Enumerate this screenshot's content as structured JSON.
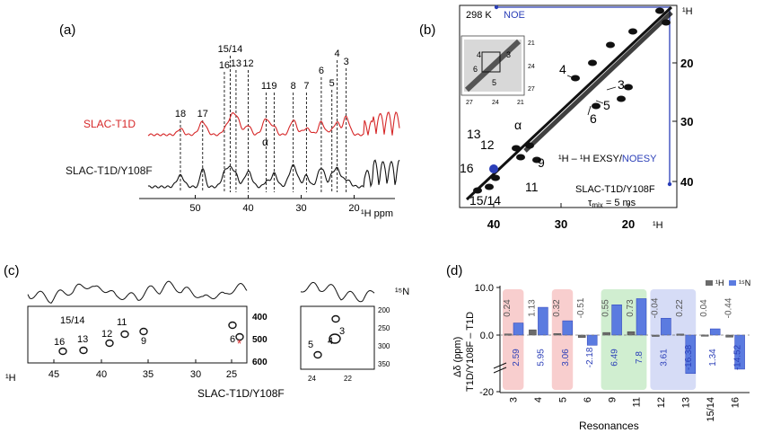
{
  "panels": {
    "a": {
      "label": "(a)",
      "series": [
        {
          "name": "SLAC-T1D",
          "color": "#d62728"
        },
        {
          "name": "SLAC-T1D/Y108F",
          "color": "#111111"
        }
      ],
      "axis_ticks": [
        "50",
        "40",
        "30",
        "20"
      ],
      "axis_label": "¹H ppm",
      "peaks": [
        {
          "label": "18",
          "ppm": 52.8
        },
        {
          "label": "17",
          "ppm": 48.6
        },
        {
          "label": "16",
          "ppm": 44.5
        },
        {
          "label": "15/14",
          "ppm": 43.4
        },
        {
          "label": "13",
          "ppm": 42.3
        },
        {
          "label": "12",
          "ppm": 40.0
        },
        {
          "label": "11",
          "ppm": 36.6
        },
        {
          "label": "9",
          "ppm": 35.1
        },
        {
          "label": "8",
          "ppm": 31.5
        },
        {
          "label": "7",
          "ppm": 29.0
        },
        {
          "label": "6",
          "ppm": 26.2
        },
        {
          "label": "5",
          "ppm": 24.2
        },
        {
          "label": "4",
          "ppm": 23.2
        },
        {
          "label": "3",
          "ppm": 21.5
        }
      ],
      "alpha_label": "α"
    },
    "b": {
      "label": "(b)",
      "temperature": "298 K",
      "noe_label": "NOE",
      "axis_unit": "¹H",
      "ticks": [
        "40",
        "30",
        "20"
      ],
      "right_ticks": [
        "20",
        "30",
        "40"
      ],
      "inset_ticks_x": [
        "27",
        "24",
        "21"
      ],
      "inset_ticks_y": [
        "21",
        "24",
        "27"
      ],
      "inset_labels": [
        "4",
        "3",
        "6",
        "5"
      ],
      "cross_peaks": [
        "4",
        "3",
        "5",
        "6",
        "α",
        "13",
        "12",
        "9",
        "16",
        "11",
        "15/14"
      ],
      "exp_label_part1": "¹H – ¹H EXSY/",
      "exp_label_part2": "NOESY",
      "sample": "SLAC-T1D/Y108F",
      "tau_label": "τ",
      "tau_sub": "mix",
      "tau_value": " = 5 ms"
    },
    "c": {
      "label": "(c)",
      "n_label": "¹⁵N",
      "h_label": "¹H",
      "x_ticks": [
        "45",
        "40",
        "35",
        "30",
        "25"
      ],
      "y_ticks_left": [
        "400",
        "500",
        "600"
      ],
      "y_ticks_right": [
        "200",
        "250",
        "300",
        "350"
      ],
      "inset_x_ticks": [
        "24",
        "22"
      ],
      "peaks_left": [
        "15/14",
        "16",
        "13",
        "12",
        "11",
        "9",
        "6"
      ],
      "peaks_right": [
        "3",
        "5",
        "4"
      ],
      "asterisk": "*",
      "sample": "SLAC-T1D/Y108F"
    },
    "d": {
      "label": "(d)"
    }
  },
  "chart_data": {
    "type": "bar",
    "title": "",
    "xlabel": "Resonances",
    "ylabel": "Δδ (ppm)",
    "ylabel2": "T1D/Y108F – T1D",
    "y_ticks": [
      "10.0",
      "0.0",
      "-20"
    ],
    "categories": [
      "3",
      "4",
      "5",
      "6",
      "9",
      "11",
      "12",
      "13",
      "15/14",
      "16"
    ],
    "series": [
      {
        "name": "¹H",
        "color": "#6b6b6b",
        "values": [
          0.24,
          1.13,
          0.32,
          -0.51,
          0.55,
          0.73,
          -0.04,
          0.22,
          0.04,
          -0.44
        ],
        "labels": [
          "0.24",
          "1.13",
          "0.32",
          "-0.51",
          "0.55",
          "0.73",
          "-0.04",
          "0.22",
          "0.04",
          "-0.44"
        ]
      },
      {
        "name": "¹⁵N",
        "color": "#5b7be0",
        "values": [
          2.59,
          5.95,
          3.06,
          -2.18,
          6.49,
          7.8,
          3.61,
          -16.38,
          1.34,
          -14.52
        ],
        "labels": [
          "2.59",
          "5.95",
          "3.06",
          "-2.18",
          "6.49",
          "7.8",
          "3.61",
          "-16.38",
          "1.34",
          "-14.52"
        ]
      }
    ],
    "highlight_groups": [
      {
        "categories": [
          "3"
        ],
        "color": "#f7c6c6"
      },
      {
        "categories": [
          "5"
        ],
        "color": "#f7c6c6"
      },
      {
        "categories": [
          "9",
          "11"
        ],
        "color": "#c8ebc8"
      },
      {
        "categories": [
          "12",
          "13"
        ],
        "color": "#cfd6f5"
      }
    ],
    "ylim": [
      -20,
      10
    ],
    "legend_position": "top-right"
  }
}
